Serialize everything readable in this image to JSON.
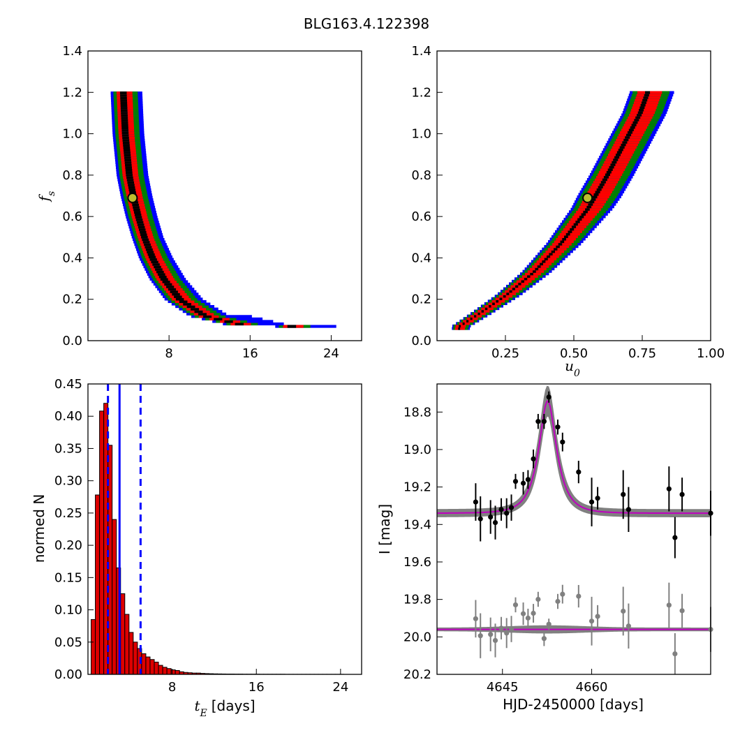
{
  "figure_title": "BLG163.4.122398",
  "colors": {
    "sigma1": "#000000",
    "sigma2": "#ff0000",
    "sigma3": "#008000",
    "sigma4": "#0000ff",
    "marker_fill": "#bdbd2e",
    "hist_fill": "#dd0000",
    "vline": "#0000ff",
    "model_band": "#808080",
    "model_line": "#bf00bf",
    "data_point": "#000000",
    "resid_point": "#808080"
  },
  "chart_data": [
    {
      "id": "tE_fs",
      "type": "heatmap",
      "xlabel": "",
      "ylabel": "f_s",
      "xlim": [
        0,
        27
      ],
      "ylim": [
        0,
        1.4
      ],
      "xticks": [
        8,
        16,
        24
      ],
      "yticks": [
        0.0,
        0.2,
        0.4,
        0.6,
        0.8,
        1.0,
        1.2,
        1.4
      ],
      "grid": false,
      "best_fit": {
        "x": 4.4,
        "y": 0.69
      },
      "ridge": [
        [
          3.4,
          1.21
        ],
        [
          3.5,
          1.1
        ],
        [
          3.6,
          1.0
        ],
        [
          3.8,
          0.9
        ],
        [
          4.0,
          0.8
        ],
        [
          4.4,
          0.7
        ],
        [
          4.9,
          0.6
        ],
        [
          5.5,
          0.5
        ],
        [
          6.3,
          0.4
        ],
        [
          7.4,
          0.3
        ],
        [
          9.0,
          0.2
        ],
        [
          11.5,
          0.12
        ],
        [
          15.0,
          0.08
        ],
        [
          20.0,
          0.07
        ]
      ],
      "contour_widths_days": [
        0.55,
        1.3,
        2.0,
        2.6
      ]
    },
    {
      "id": "u0_fs",
      "type": "heatmap",
      "xlabel": "u_0",
      "ylabel": "",
      "xlim": [
        0,
        1.0
      ],
      "ylim": [
        0,
        1.4
      ],
      "xticks": [
        "0.25",
        "0.50",
        "0.75",
        "1.00"
      ],
      "yticks": [
        0.0,
        0.2,
        0.4,
        0.6,
        0.8,
        1.0,
        1.2,
        1.4
      ],
      "grid": false,
      "best_fit": {
        "x": 0.55,
        "y": 0.69
      },
      "ridge": [
        [
          0.08,
          0.07
        ],
        [
          0.15,
          0.13
        ],
        [
          0.25,
          0.22
        ],
        [
          0.35,
          0.33
        ],
        [
          0.45,
          0.47
        ],
        [
          0.55,
          0.64
        ],
        [
          0.62,
          0.8
        ],
        [
          0.68,
          0.95
        ],
        [
          0.74,
          1.1
        ],
        [
          0.77,
          1.21
        ]
      ],
      "contour_widths_u0": [
        0.01,
        0.05,
        0.075,
        0.09
      ]
    },
    {
      "id": "tE_hist",
      "type": "bar",
      "xlabel": "t_E [days]",
      "ylabel": "normed N",
      "xlim": [
        0,
        26
      ],
      "ylim": [
        0,
        0.45
      ],
      "xticks": [
        8,
        16,
        24
      ],
      "yticks": [
        "0.00",
        "0.05",
        "0.10",
        "0.15",
        "0.20",
        "0.25",
        "0.30",
        "0.35",
        "0.40",
        "0.45"
      ],
      "bin_start": 0.3,
      "bin_width": 0.4,
      "values": [
        0.085,
        0.278,
        0.408,
        0.42,
        0.355,
        0.24,
        0.165,
        0.125,
        0.093,
        0.065,
        0.05,
        0.04,
        0.032,
        0.027,
        0.023,
        0.019,
        0.014,
        0.011,
        0.009,
        0.007,
        0.006,
        0.004,
        0.003,
        0.0025,
        0.002,
        0.002,
        0.0015,
        0.0012,
        0.001,
        0.0008,
        0.0007,
        0.0006,
        0.0005,
        0.0005,
        0.0004,
        0.0004,
        0.0003,
        0.0003,
        0.0003,
        0.0003,
        0.0002,
        0.0002,
        0.0002,
        0.0002,
        0.0002,
        0.0002,
        0.0001,
        0.0001,
        0.0001,
        0.0001,
        0.0001,
        0.0001,
        0.0001,
        0.0001,
        0.0001,
        0.0001,
        0.0001,
        0.0001,
        0.0001,
        0.0001
      ],
      "median": 3.0,
      "conf_interval": [
        1.9,
        5.0
      ]
    },
    {
      "id": "lightcurve",
      "type": "scatter",
      "xlabel": "HJD-2450000 [days]",
      "ylabel": "I [mag]",
      "xlim": [
        4634,
        4680
      ],
      "ylim": [
        20.2,
        18.65
      ],
      "xticks": [
        "4645",
        "4660"
      ],
      "yticks": [
        "18.8",
        "19.0",
        "19.2",
        "19.4",
        "19.6",
        "19.8",
        "20.0",
        "20.2"
      ],
      "model": {
        "t0": 4652.6,
        "tE": 2.9,
        "u0": 0.55,
        "baseline": 19.34,
        "amp": 0.6,
        "band": 0.02
      },
      "residual_offset": 19.96,
      "points": [
        {
          "t": 4640.5,
          "mag": 19.28,
          "err": 0.1
        },
        {
          "t": 4641.3,
          "mag": 19.37,
          "err": 0.12
        },
        {
          "t": 4643.0,
          "mag": 19.36,
          "err": 0.09
        },
        {
          "t": 4643.8,
          "mag": 19.39,
          "err": 0.09
        },
        {
          "t": 4644.8,
          "mag": 19.32,
          "err": 0.06
        },
        {
          "t": 4645.7,
          "mag": 19.34,
          "err": 0.08
        },
        {
          "t": 4646.5,
          "mag": 19.31,
          "err": 0.07
        },
        {
          "t": 4647.2,
          "mag": 19.17,
          "err": 0.04
        },
        {
          "t": 4648.5,
          "mag": 19.18,
          "err": 0.06
        },
        {
          "t": 4649.3,
          "mag": 19.16,
          "err": 0.05
        },
        {
          "t": 4650.2,
          "mag": 19.05,
          "err": 0.05
        },
        {
          "t": 4651.0,
          "mag": 18.85,
          "err": 0.04
        },
        {
          "t": 4652.0,
          "mag": 18.85,
          "err": 0.04
        },
        {
          "t": 4652.8,
          "mag": 18.72,
          "err": 0.03
        },
        {
          "t": 4654.3,
          "mag": 18.88,
          "err": 0.04
        },
        {
          "t": 4655.1,
          "mag": 18.96,
          "err": 0.05
        },
        {
          "t": 4657.8,
          "mag": 19.12,
          "err": 0.06
        },
        {
          "t": 4660.0,
          "mag": 19.28,
          "err": 0.13
        },
        {
          "t": 4661.0,
          "mag": 19.26,
          "err": 0.06
        },
        {
          "t": 4665.3,
          "mag": 19.24,
          "err": 0.13
        },
        {
          "t": 4666.2,
          "mag": 19.32,
          "err": 0.12
        },
        {
          "t": 4673.0,
          "mag": 19.21,
          "err": 0.12
        },
        {
          "t": 4674.0,
          "mag": 19.47,
          "err": 0.11
        },
        {
          "t": 4675.2,
          "mag": 19.24,
          "err": 0.09
        },
        {
          "t": 4680.0,
          "mag": 19.34,
          "err": 0.12
        }
      ]
    }
  ]
}
